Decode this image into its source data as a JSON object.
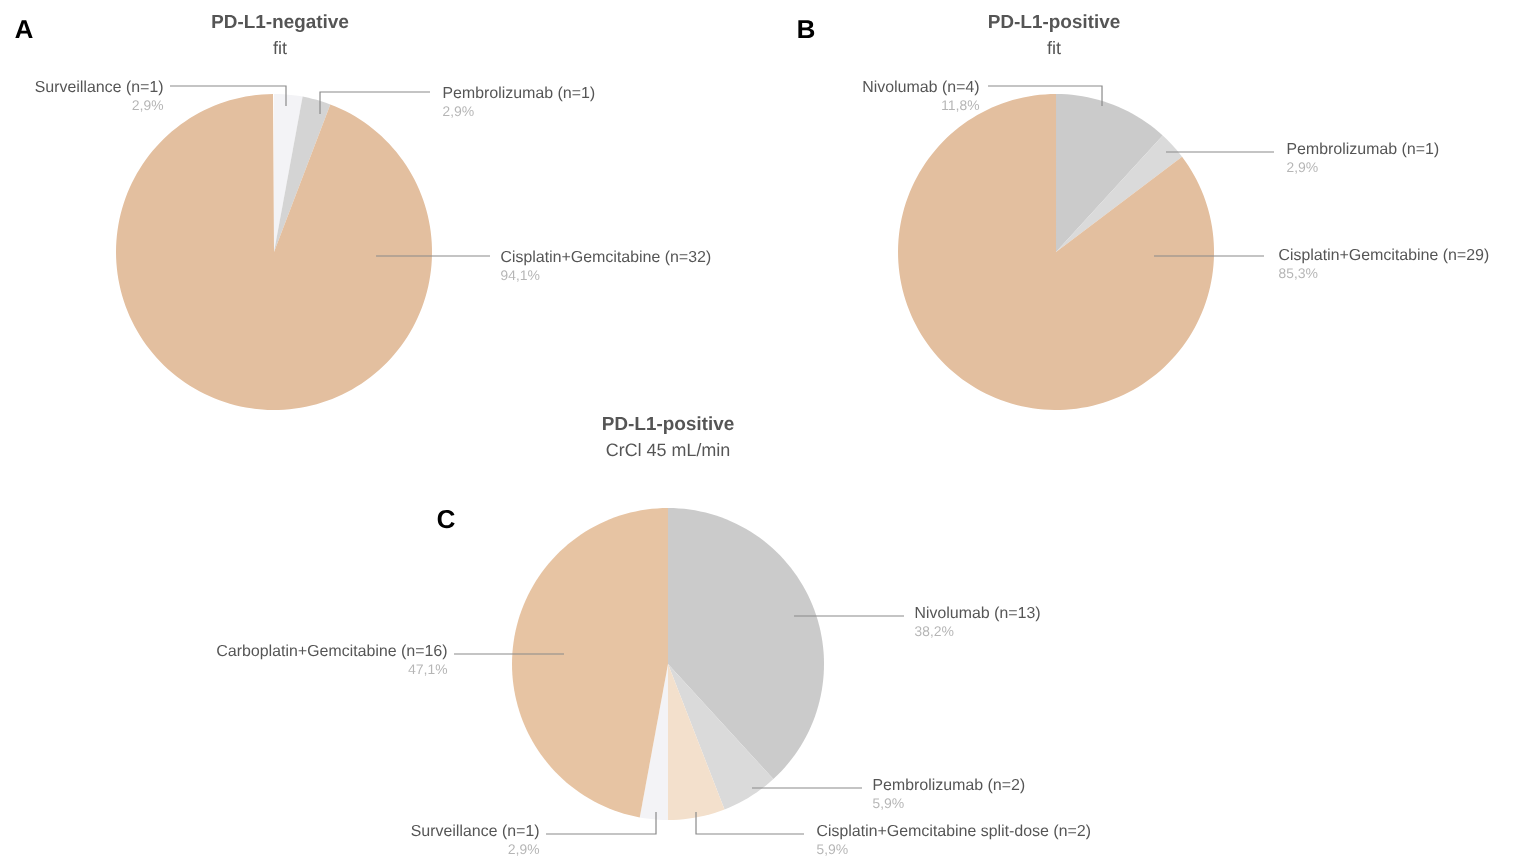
{
  "chart_data": [
    {
      "type": "pie",
      "title": "PD-L1-negative",
      "subtitle": "fit",
      "annotations": [
        "A"
      ],
      "categories": [
        "Surveillance (n=1)",
        "Pembrolizumab (n=1)",
        "Cisplatin+Gemcitabine (n=32)"
      ],
      "values": [
        2.9,
        2.9,
        94.1
      ],
      "value_labels": [
        "2,9%",
        "2,9%",
        "94,1%"
      ],
      "colors": [
        "#f3f3f6",
        "#d4d4d4",
        "#e3bf9f"
      ]
    },
    {
      "type": "pie",
      "title": "PD-L1-positive",
      "subtitle": "fit",
      "annotations": [
        "B"
      ],
      "categories": [
        "Nivolumab (n=4)",
        "Pembrolizumab (n=1)",
        "Cisplatin+Gemcitabine (n=29)"
      ],
      "values": [
        11.8,
        2.9,
        85.3
      ],
      "value_labels": [
        "11,8%",
        "2,9%",
        "85,3%"
      ],
      "colors": [
        "#cbcbcb",
        "#dadada",
        "#e3bf9f"
      ]
    },
    {
      "type": "pie",
      "title": "PD-L1-positive",
      "subtitle": "CrCl 45 mL/min",
      "annotations": [
        "C"
      ],
      "categories": [
        "Nivolumab (n=13)",
        "Pembrolizumab (n=2)",
        "Cisplatin+Gemcitabine split-dose (n=2)",
        "Surveillance (n=1)",
        "Carboplatin+Gemcitabine (n=16)"
      ],
      "values": [
        38.2,
        5.9,
        5.9,
        2.9,
        47.1
      ],
      "value_labels": [
        "38,2%",
        "5,9%",
        "5,9%",
        "2,9%",
        "47,1%"
      ],
      "colors": [
        "#cbcbcb",
        "#dadada",
        "#f3e0cc",
        "#f3f3f6",
        "#e7c4a3"
      ]
    }
  ]
}
